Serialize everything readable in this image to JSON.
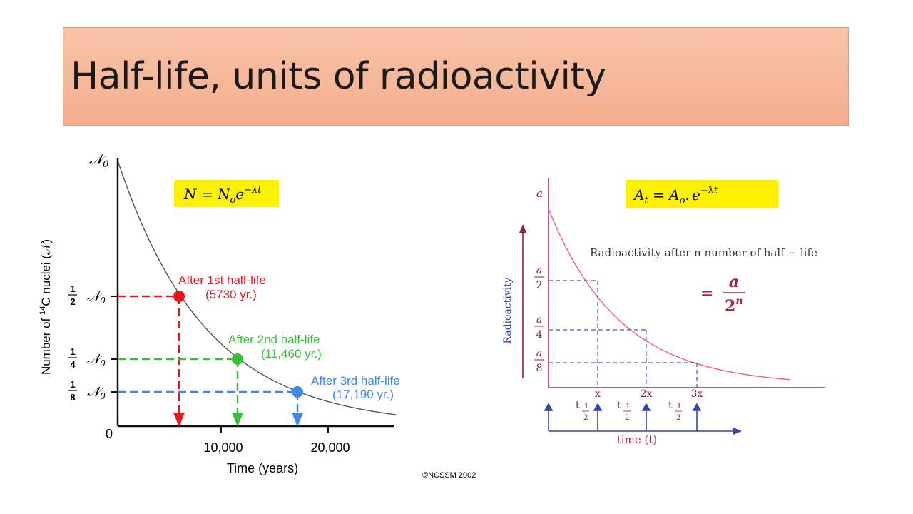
{
  "slide": {
    "title": "Half-life, units of radioactivity"
  },
  "left_chart": {
    "formula": {
      "lhs": "N",
      "eq": " = ",
      "base": "N",
      "sub": "o",
      "e": "e",
      "exp": "−λt"
    },
    "yaxis_label_pre": "Number of ",
    "yaxis_label_sup": "14",
    "yaxis_label_post": "C nuclei (𝒩)",
    "ytick_top": "𝒩",
    "ytick_top_sub": "0",
    "ytick_half_num": "1",
    "ytick_half_den": "2",
    "ytick_quarter_num": "1",
    "ytick_quarter_den": "4",
    "ytick_eighth_num": "1",
    "ytick_eighth_den": "8",
    "ytick_sym": "𝒩",
    "ytick_sym_sub": "0",
    "ytick_zero": "0",
    "xticks": [
      "10,000",
      "20,000"
    ],
    "xaxis_label": "Time (years)",
    "copyright": "©NCSSM 2002",
    "annotations": [
      {
        "line1": "After 1st half-life",
        "line2": "(5730 yr.)",
        "color": "#e8141c"
      },
      {
        "line1": "After 2nd half-life",
        "line2": "(11,460 yr.)",
        "color": "#3dbb3d"
      },
      {
        "line1": "After 3rd half-life",
        "line2": "(17,190 yr.)",
        "color": "#3f87e8"
      }
    ]
  },
  "right_chart": {
    "formula": {
      "A": "A",
      "t": "t",
      "eq": " = ",
      "A2": "A",
      "o": "o",
      "dot": ".",
      "e": "e",
      "exp": "−λt"
    },
    "ytick_a": "a",
    "frac_a": "a",
    "den2": "2",
    "den4": "4",
    "den8": "8",
    "yaxis_label": "Radioactivity",
    "caption": "Radioactivity after n number of half − life",
    "result_eq": "=",
    "result_num": "a",
    "result_den": "2",
    "result_exp": "n",
    "xticks": [
      "x",
      "2x",
      "3x"
    ],
    "halflife_t": "t",
    "halflife_num": "1",
    "halflife_den": "2",
    "xaxis_label": "time (t)"
  },
  "chart_data": [
    {
      "type": "line",
      "title": "",
      "xlabel": "Time (years)",
      "ylabel": "Number of 14C nuclei (𝒩)",
      "x": [
        0,
        5730,
        11460,
        17190,
        26000
      ],
      "y": [
        1,
        0.5,
        0.25,
        0.125,
        0.043
      ],
      "xlim": [
        0,
        26000
      ],
      "ylim": [
        0,
        1
      ],
      "markers": [
        {
          "x": 5730,
          "y": 0.5
        },
        {
          "x": 11460,
          "y": 0.25
        },
        {
          "x": 17190,
          "y": 0.125
        }
      ]
    },
    {
      "type": "line",
      "title": "",
      "xlabel": "time (t)",
      "ylabel": "Radioactivity",
      "x": [
        0,
        1,
        2,
        3,
        3.7
      ],
      "y": [
        1,
        0.5,
        0.25,
        0.125,
        0.08
      ],
      "guides": [
        {
          "x": 1,
          "y": 0.5
        },
        {
          "x": 2,
          "y": 0.25
        },
        {
          "x": 3,
          "y": 0.125
        }
      ]
    }
  ]
}
